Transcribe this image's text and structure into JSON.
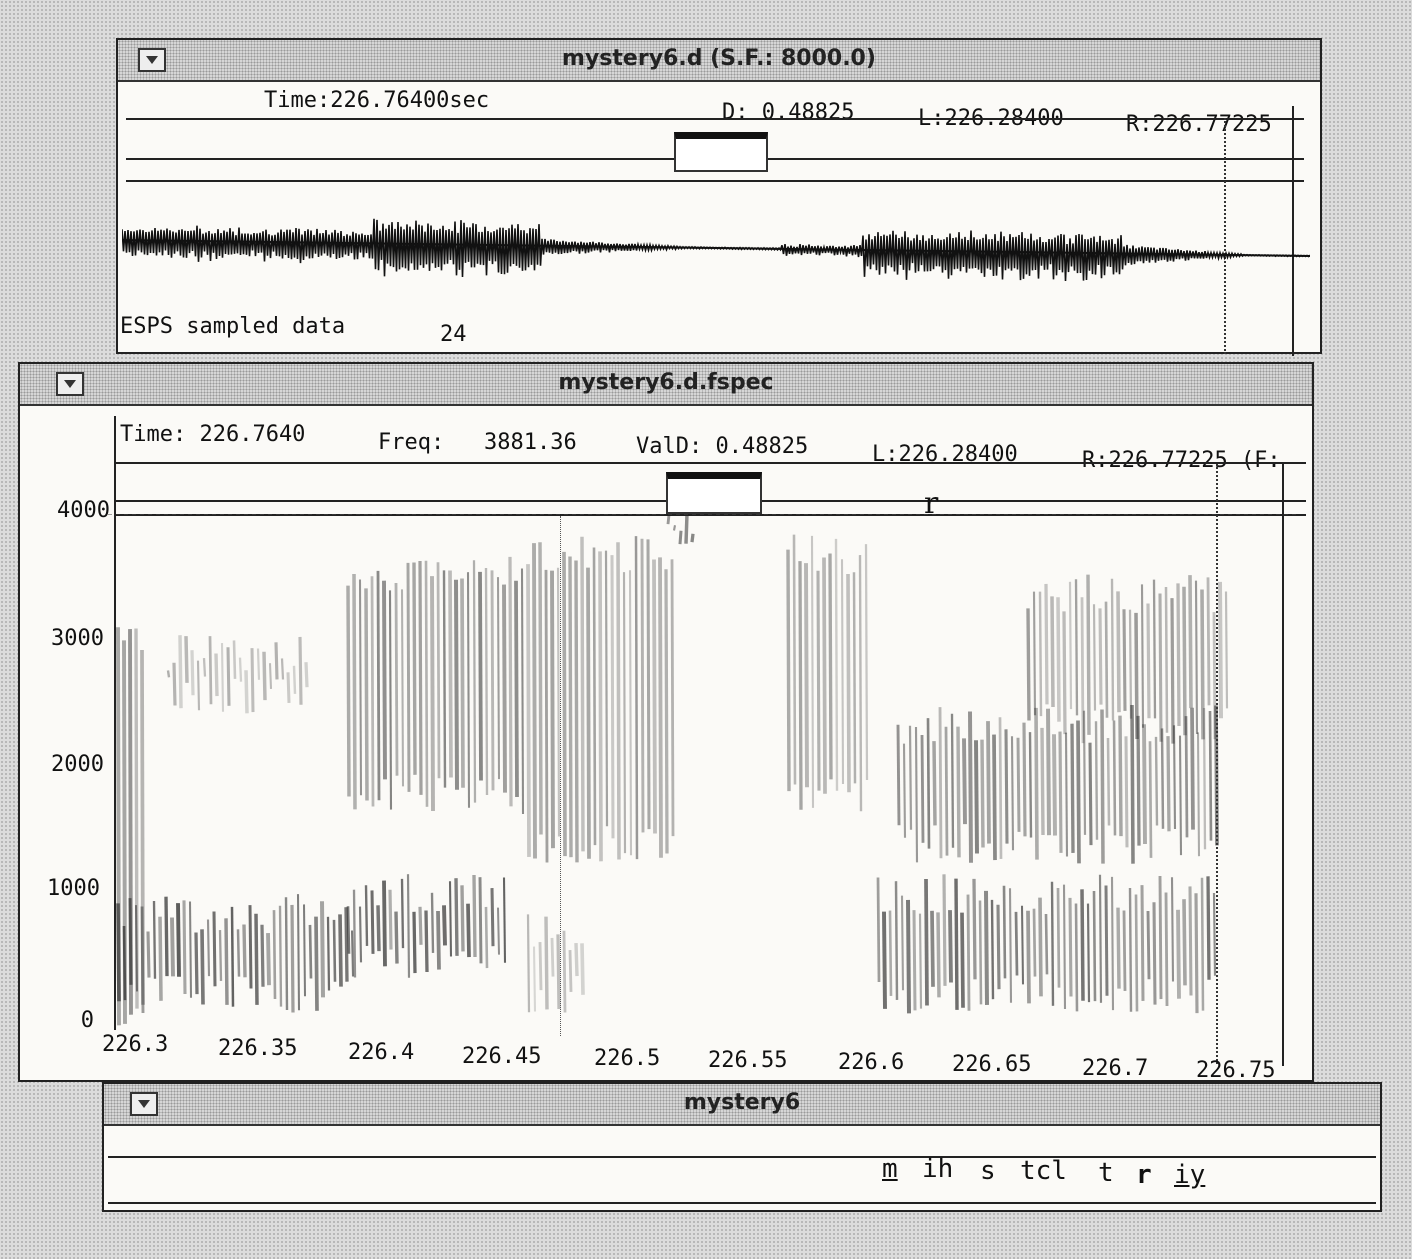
{
  "waveform_window": {
    "title": "mystery6.d (S.F.: 8000.0)",
    "time": "Time:226.76400sec",
    "d": "D: 0.48825",
    "l": "L:226.28400",
    "r": "R:226.77225",
    "footer_label": "ESPS sampled data",
    "footer_value": "24"
  },
  "spectrogram_window": {
    "title": "mystery6.d.fspec",
    "time": "Time: 226.7640",
    "freq_label": "Freq:",
    "freq_value": "3881.36",
    "vald": "ValD: 0.48825",
    "l": "L:226.28400",
    "r": "R:226.77225 (F:",
    "marker_label": "r",
    "y_ticks": [
      "4000",
      "3000",
      "2000",
      "1000",
      "0"
    ],
    "x_ticks": [
      "226.3",
      "226.35",
      "226.4",
      "226.45",
      "226.5",
      "226.55",
      "226.6",
      "226.65",
      "226.7",
      "226.75"
    ]
  },
  "label_window": {
    "title": "mystery6",
    "segments": [
      "m",
      "ih",
      "s",
      "tcl",
      "t",
      "r",
      "iy"
    ]
  }
}
